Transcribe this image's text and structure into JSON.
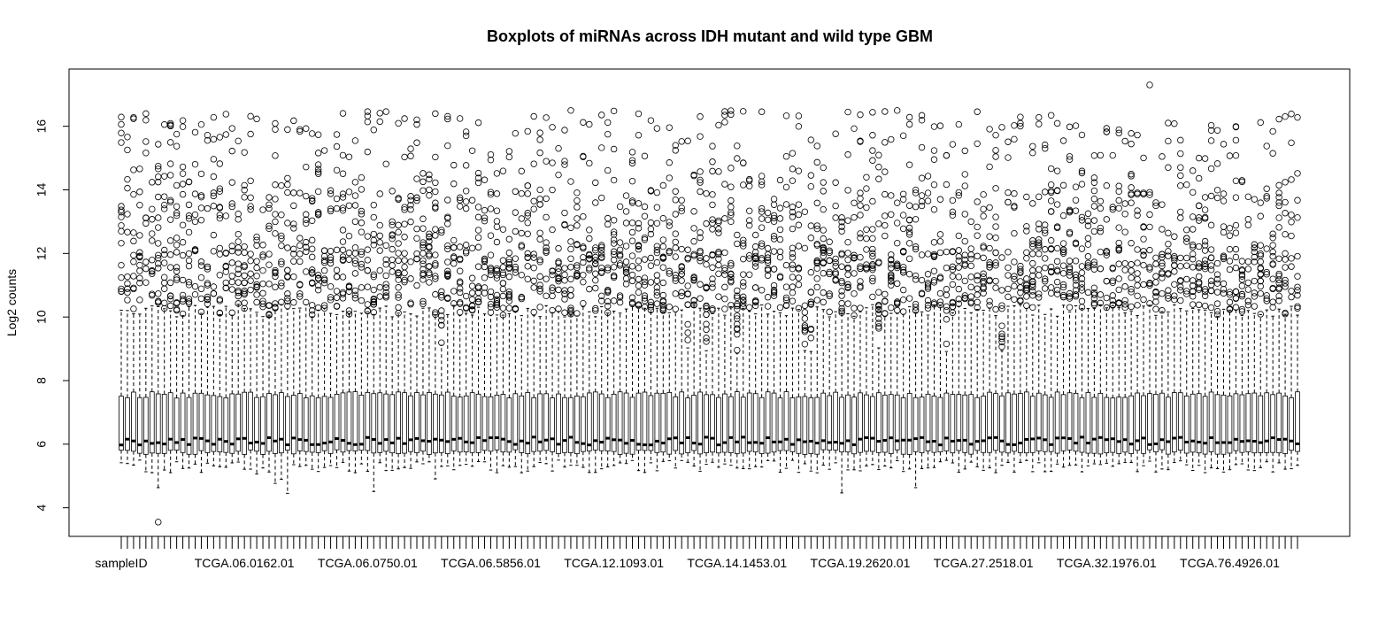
{
  "chart_data": {
    "type": "boxplot",
    "title": "Boxplots of miRNAs across IDH mutant and wild type GBM",
    "xlabel": "",
    "ylabel": "Log2 counts",
    "ylim": [
      3.1,
      17.8
    ],
    "y_ticks": [
      4,
      6,
      8,
      10,
      12,
      14,
      16
    ],
    "n_boxes": 192,
    "x_tick_labels": [
      "sampleID",
      "TCGA.06.0162.01",
      "TCGA.06.0750.01",
      "TCGA.06.5856.01",
      "TCGA.12.1093.01",
      "TCGA.14.1453.01",
      "TCGA.19.2620.01",
      "TCGA.27.2518.01",
      "TCGA.32.1976.01",
      "TCGA.76.4926.01"
    ],
    "x_tick_label_positions": [
      1,
      21,
      41,
      61,
      81,
      101,
      121,
      141,
      161,
      181
    ],
    "typical_box": {
      "median": 6.1,
      "q1": 5.75,
      "q3": 7.55,
      "lower_whisker": 5.5,
      "upper_whisker": 10.2,
      "outlier_range": [
        9.8,
        16.5
      ]
    },
    "notable_points": [
      {
        "sample": 7,
        "value": 3.55
      },
      {
        "sample": 168,
        "value": 17.3
      }
    ],
    "grid": false,
    "legend": "none"
  }
}
